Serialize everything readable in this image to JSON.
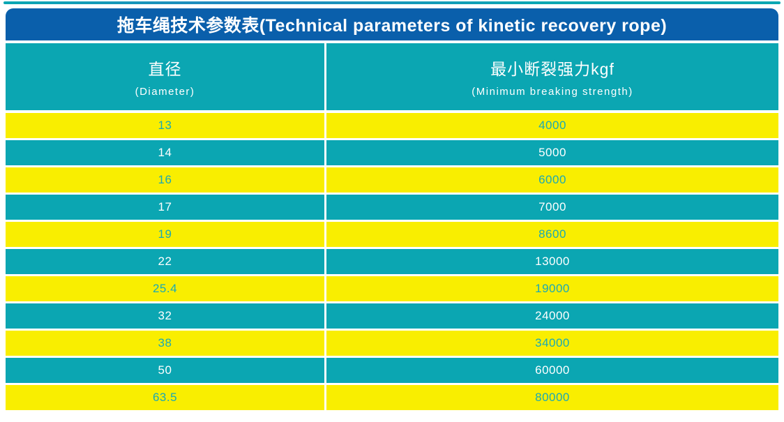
{
  "page": {
    "title": "拖车绳技术参数表(Technical parameters of kinetic recovery rope)"
  },
  "table": {
    "columns": [
      {
        "zh": "直径",
        "en": "(Diameter)"
      },
      {
        "zh": "最小断裂强力kgf",
        "en": "(Minimum breaking strength)"
      }
    ],
    "rows": [
      {
        "diameter": "13",
        "strength": "4000"
      },
      {
        "diameter": "14",
        "strength": "5000"
      },
      {
        "diameter": "16",
        "strength": "6000"
      },
      {
        "diameter": "17",
        "strength": "7000"
      },
      {
        "diameter": "19",
        "strength": "8600"
      },
      {
        "diameter": "22",
        "strength": "13000"
      },
      {
        "diameter": "25.4",
        "strength": "19000"
      },
      {
        "diameter": "32",
        "strength": "24000"
      },
      {
        "diameter": "38",
        "strength": "34000"
      },
      {
        "diameter": "50",
        "strength": "60000"
      },
      {
        "diameter": "63.5",
        "strength": "80000"
      }
    ]
  },
  "colors": {
    "title_bar_blue": "#0a5fab",
    "teal": "#0ba6b2",
    "yellow": "#f9ee00",
    "teal_text_on_yellow": "#1aa9b5",
    "white_text": "#ffffff"
  }
}
